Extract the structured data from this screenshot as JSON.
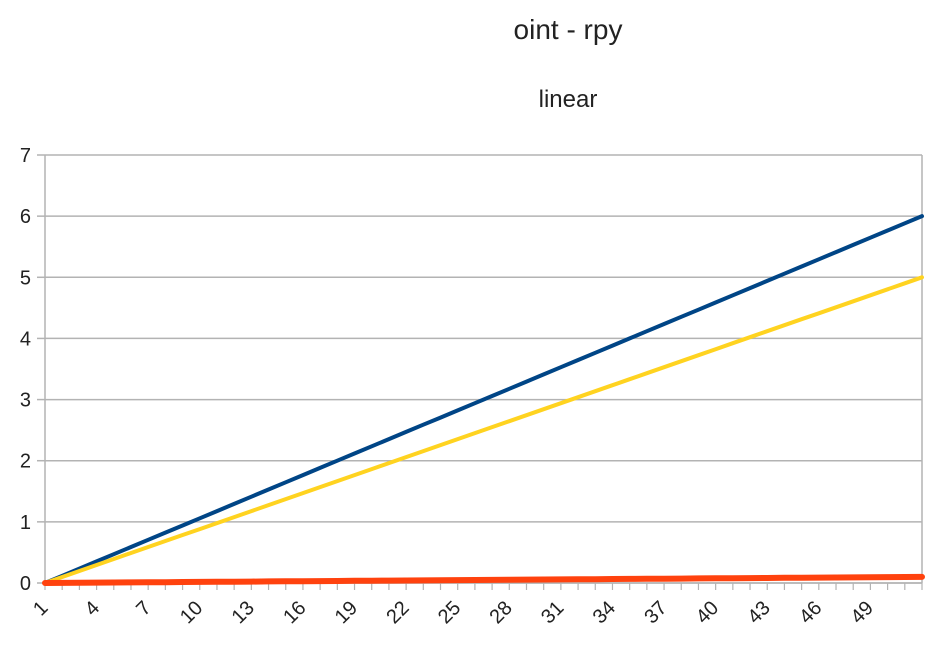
{
  "chart_data": {
    "type": "line",
    "title": "oint - rpy",
    "subtitle": "linear",
    "x": [
      1,
      2,
      3,
      4,
      5,
      6,
      7,
      8,
      9,
      10,
      11,
      12,
      13,
      14,
      15,
      16,
      17,
      18,
      19,
      20,
      21,
      22,
      23,
      24,
      25,
      26,
      27,
      28,
      29,
      30,
      31,
      32,
      33,
      34,
      35,
      36,
      37,
      38,
      39,
      40,
      41,
      42,
      43,
      44,
      45,
      46,
      47,
      48,
      49,
      50,
      51,
      52
    ],
    "xticks": [
      "1",
      "4",
      "7",
      "10",
      "13",
      "16",
      "19",
      "22",
      "25",
      "28",
      "31",
      "34",
      "37",
      "40",
      "43",
      "46",
      "49"
    ],
    "ylim": [
      0,
      7
    ],
    "yticks": [
      "0",
      "1",
      "2",
      "3",
      "4",
      "5",
      "6",
      "7"
    ],
    "grid": true,
    "series": [
      {
        "color": "#004586",
        "start": 0,
        "end": 6.0
      },
      {
        "color": "#ffd320",
        "start": 0,
        "end": 5.0
      },
      {
        "color": "#ff420e",
        "start": 0,
        "end": 0.1
      }
    ],
    "colors": {
      "grid": "#b3b3b3",
      "axis": "#b3b3b3"
    }
  }
}
